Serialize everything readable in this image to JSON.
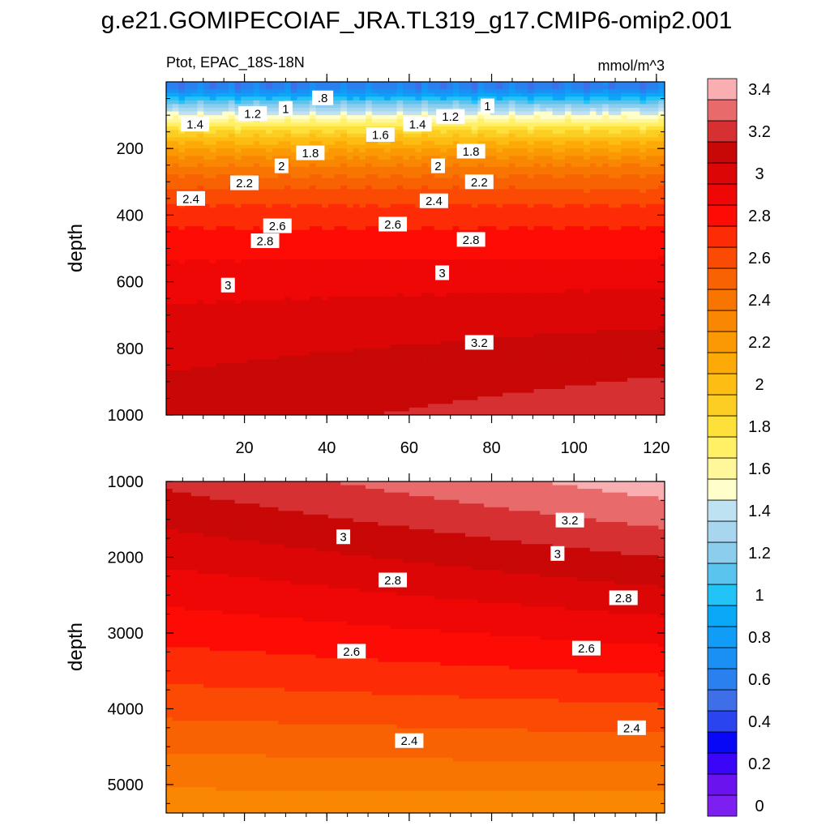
{
  "chart_data": {
    "type": "heatmap",
    "title": "g.e21.GOMIPECOIAF_JRA.TL319_g17.CMIP6-omip2.001",
    "variable": "Ptot, EPAC_18S-18N",
    "units": "mmol/m^3",
    "x_range": [
      1,
      122
    ],
    "x_ticks": [
      "20",
      "40",
      "60",
      "80",
      "100",
      "120"
    ],
    "colorbar": {
      "levels": [
        0,
        0.2,
        0.4,
        0.6,
        0.8,
        1,
        1.2,
        1.4,
        1.6,
        1.8,
        2,
        2.2,
        2.4,
        2.6,
        2.8,
        3,
        3.2,
        3.4
      ],
      "labels": [
        "0",
        "0.2",
        "0.4",
        "0.6",
        "0.8",
        "1",
        "1.2",
        "1.4",
        "1.6",
        "1.8",
        "2",
        "2.2",
        "2.4",
        "2.6",
        "2.8",
        "3",
        "3.2",
        "3.4"
      ],
      "colors": [
        "#7d1ff0",
        "#6a13ee",
        "#3b06f8",
        "#0808f6",
        "#2a45ef",
        "#3e6ee8",
        "#2a80ee",
        "#1a8ff4",
        "#109cf7",
        "#0aa9f8",
        "#22c3f7",
        "#5ac4ee",
        "#8ccdee",
        "#a8d6ee",
        "#bee2f2",
        "#ffffcc",
        "#fff79a",
        "#fff066",
        "#fde03a",
        "#fccd22",
        "#fdbd12",
        "#fdaa08",
        "#fb9904",
        "#fa8702",
        "#f97502",
        "#f96202",
        "#fa4a03",
        "#fe2c06",
        "#fd0b05",
        "#ef0706",
        "#dc0606",
        "#c80707",
        "#d63032",
        "#e86a6a",
        "#f9aeb2"
      ]
    },
    "panels": [
      {
        "ylabel": "depth",
        "ylim": [
          0,
          1000
        ],
        "y_ticks": [
          "200",
          "400",
          "600",
          "800",
          "1000"
        ],
        "contour_labels": [
          {
            "text": "1.4",
            "x": 8,
            "y": 127
          },
          {
            "text": "1.2",
            "x": 22,
            "y": 95
          },
          {
            "text": "1",
            "x": 30,
            "y": 80
          },
          {
            "text": ".8",
            "x": 39,
            "y": 48
          },
          {
            "text": "1.6",
            "x": 53,
            "y": 158
          },
          {
            "text": "1.4",
            "x": 62,
            "y": 127
          },
          {
            "text": "1.2",
            "x": 70,
            "y": 104
          },
          {
            "text": "1",
            "x": 79,
            "y": 72
          },
          {
            "text": "1.8",
            "x": 36,
            "y": 213
          },
          {
            "text": "1.8",
            "x": 75,
            "y": 208
          },
          {
            "text": "2",
            "x": 29,
            "y": 252
          },
          {
            "text": "2",
            "x": 67,
            "y": 252
          },
          {
            "text": "2.2",
            "x": 20,
            "y": 303
          },
          {
            "text": "2.2",
            "x": 77,
            "y": 300
          },
          {
            "text": "2.4",
            "x": 7,
            "y": 350
          },
          {
            "text": "2.4",
            "x": 66,
            "y": 357
          },
          {
            "text": "2.6",
            "x": 28,
            "y": 432
          },
          {
            "text": "2.6",
            "x": 56,
            "y": 427
          },
          {
            "text": "2.8",
            "x": 25,
            "y": 477
          },
          {
            "text": "2.8",
            "x": 75,
            "y": 473
          },
          {
            "text": "3",
            "x": 16,
            "y": 610
          },
          {
            "text": "3",
            "x": 68,
            "y": 573
          },
          {
            "text": "3.2",
            "x": 77,
            "y": 782
          }
        ]
      },
      {
        "ylabel": "depth",
        "ylim": [
          1000,
          5375
        ],
        "y_ticks": [
          "1000",
          "2000",
          "3000",
          "4000",
          "5000"
        ],
        "contour_labels": [
          {
            "text": "3",
            "x": 44,
            "y": 1730
          },
          {
            "text": "3",
            "x": 96,
            "y": 1950
          },
          {
            "text": "3.2",
            "x": 99,
            "y": 1510
          },
          {
            "text": "2.8",
            "x": 56,
            "y": 2300
          },
          {
            "text": "2.8",
            "x": 112,
            "y": 2535
          },
          {
            "text": "2.6",
            "x": 46,
            "y": 3240
          },
          {
            "text": "2.6",
            "x": 103,
            "y": 3200
          },
          {
            "text": "2.4",
            "x": 60,
            "y": 4420
          },
          {
            "text": "2.4",
            "x": 114,
            "y": 4250
          }
        ]
      }
    ]
  }
}
